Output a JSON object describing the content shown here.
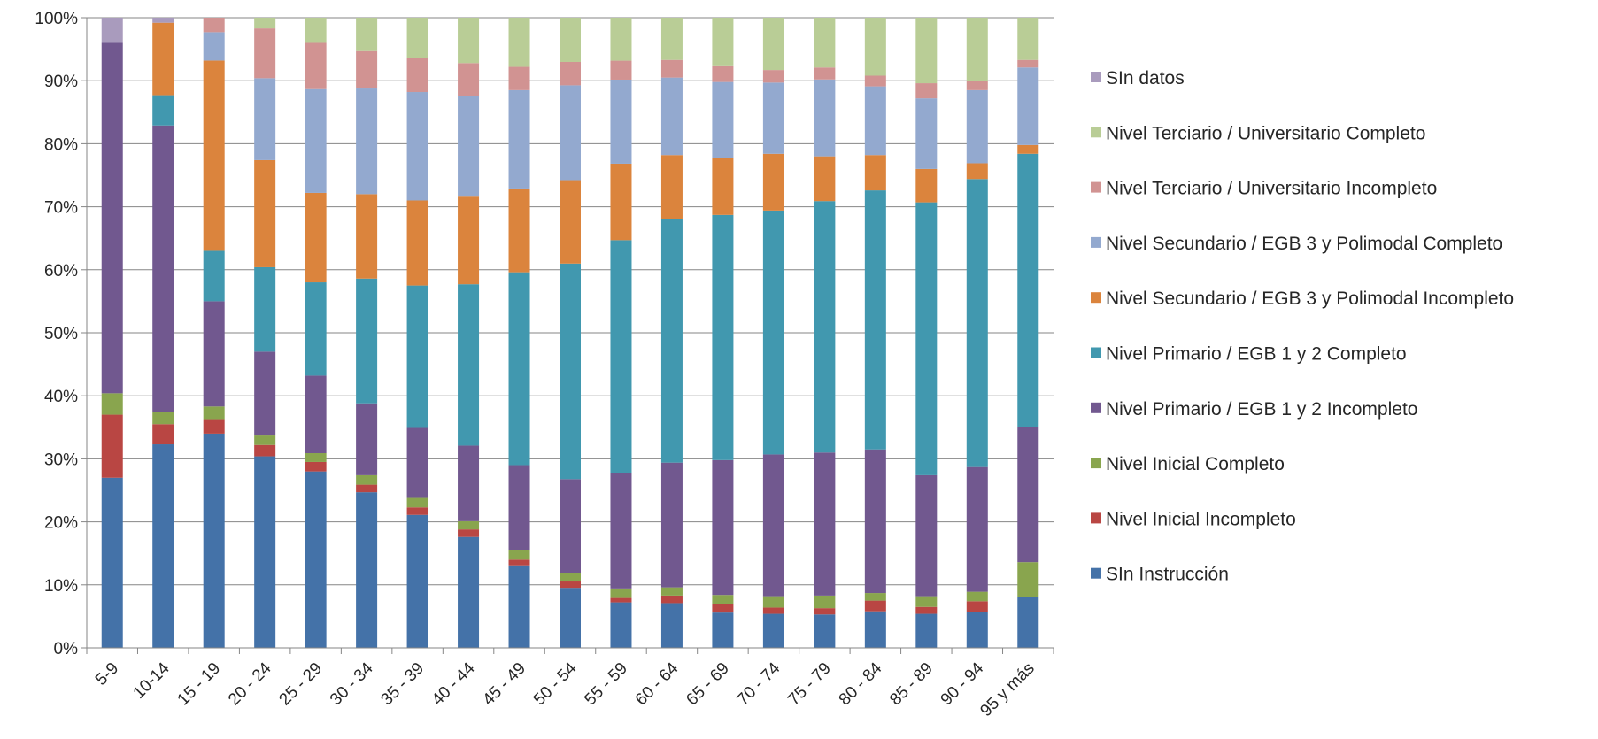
{
  "chart_data": {
    "type": "bar",
    "stacked": true,
    "percent": true,
    "title": "",
    "xlabel": "",
    "ylabel": "",
    "ylim": [
      0,
      100
    ],
    "yticks": [
      "0%",
      "10%",
      "20%",
      "30%",
      "40%",
      "50%",
      "60%",
      "70%",
      "80%",
      "90%",
      "100%"
    ],
    "grid": true,
    "legend_position": "right",
    "categories": [
      "5-9",
      "10-14",
      "15 - 19",
      "20 - 24",
      "25 - 29",
      "30 - 34",
      "35 - 39",
      "40 - 44",
      "45 - 49",
      "50 - 54",
      "55 - 59",
      "60 - 64",
      "65 - 69",
      "70 - 74",
      "75 - 79",
      "80 - 84",
      "85 - 89",
      "90 - 94",
      "95 y más"
    ],
    "series": [
      {
        "name": "SIn Instrucción",
        "color": "#4472a8",
        "values": [
          27,
          32.3,
          34,
          30.4,
          28,
          24.7,
          21.1,
          17.6,
          13.1,
          9.5,
          7.2,
          7.1,
          5.6,
          5.4,
          5.3,
          5.8,
          5.4,
          5.7,
          8.1
        ]
      },
      {
        "name": "Nivel Inicial Incompleto",
        "color": "#b94643",
        "values": [
          10,
          3.2,
          2.3,
          1.8,
          1.5,
          1.2,
          1.2,
          1.2,
          0.9,
          1.0,
          0.7,
          1.2,
          1.4,
          1.0,
          1.0,
          1.7,
          1.1,
          1.7,
          0
        ]
      },
      {
        "name": "Nivel Inicial Completo",
        "color": "#89a54e",
        "values": [
          3.4,
          2.0,
          2.0,
          1.5,
          1.4,
          1.5,
          1.5,
          1.3,
          1.5,
          1.4,
          1.5,
          1.3,
          1.4,
          1.8,
          2.0,
          1.2,
          1.7,
          1.5,
          5.5
        ]
      },
      {
        "name": "Nivel Primario / EGB 1 y 2 Incompleto",
        "color": "#71588f",
        "values": [
          55.6,
          45.4,
          16.7,
          13.3,
          12.3,
          11.4,
          11.1,
          12.0,
          13.5,
          14.8,
          18.2,
          19.8,
          21.4,
          22.5,
          22.7,
          22.8,
          19.2,
          19.8,
          21.4
        ]
      },
      {
        "name": "Nivel Primario / EGB 1 y 2 Completo",
        "color": "#4198af",
        "values": [
          0,
          4.8,
          8.0,
          13.4,
          14.8,
          19.8,
          22.6,
          25.6,
          30.6,
          34.1,
          36.9,
          38.7,
          38.9,
          38.7,
          39.9,
          41.1,
          43.3,
          45.7,
          43.4
        ]
      },
      {
        "name": "Nivel Secundario / EGB 3 y Polimodal Incompleto",
        "color": "#db843d",
        "values": [
          0,
          11.5,
          30.2,
          17.0,
          14.2,
          13.4,
          13.5,
          13.9,
          13.3,
          13.2,
          12.1,
          10.1,
          9.0,
          9.0,
          7.1,
          5.6,
          5.3,
          2.5,
          1.4
        ]
      },
      {
        "name": "Nivel Secundario / EGB 3 y Polimodal Completo",
        "color": "#93a9cf",
        "values": [
          0,
          0,
          4.5,
          13.0,
          16.6,
          16.9,
          17.2,
          15.9,
          15.6,
          15.0,
          13.3,
          12.3,
          12.1,
          11.3,
          12.2,
          10.9,
          11.2,
          11.6,
          12.3
        ]
      },
      {
        "name": "Nivel Terciario / Universitario Incompleto",
        "color": "#d19392",
        "values": [
          0,
          0,
          2.3,
          7.9,
          7.2,
          5.8,
          5.4,
          5.3,
          3.7,
          3.7,
          3.0,
          2.8,
          2.5,
          2.0,
          1.9,
          1.7,
          2.4,
          1.4,
          1.2
        ]
      },
      {
        "name": "Nivel Terciario / Universitario Completo",
        "color": "#b9cd96",
        "values": [
          0,
          0,
          0,
          1.7,
          4.0,
          5.3,
          6.4,
          7.2,
          7.8,
          7.0,
          6.8,
          6.7,
          7.7,
          8.3,
          7.9,
          9.2,
          10.4,
          10.1,
          6.7
        ]
      },
      {
        "name": "SIn datos",
        "color": "#a99bbd",
        "values": [
          4,
          0.8,
          0,
          0,
          0,
          0,
          0,
          0,
          0,
          0,
          0,
          0,
          0,
          0,
          0,
          0,
          0,
          0,
          0
        ]
      }
    ]
  }
}
